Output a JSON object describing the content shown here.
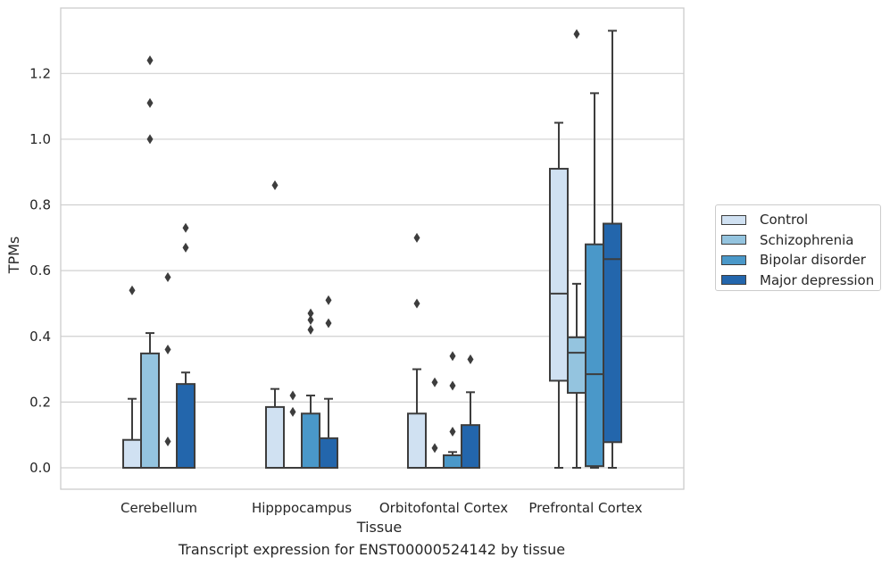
{
  "chart_data": {
    "type": "box",
    "title": "",
    "caption": "Transcript expression for ENST00000524142 by tissue",
    "xlabel": "Tissue",
    "ylabel": "TPMs",
    "ylim": [
      -0.065,
      1.405
    ],
    "yticks": [
      "0.0",
      "0.2",
      "0.4",
      "0.6",
      "0.8",
      "1.0",
      "1.2"
    ],
    "grid": "horizontal",
    "legend_position": "right",
    "categories": [
      "Cerebellum",
      "Hipppocampus",
      "Orbitofontal Cortex",
      "Prefrontal Cortex"
    ],
    "series": [
      {
        "name": "Control",
        "color": "#d0e1f2",
        "boxes": [
          {
            "q1": 0.0,
            "median": 0.0,
            "q3": 0.085,
            "whisker_low": 0.0,
            "whisker_high": 0.21,
            "outliers": [
              0.54
            ]
          },
          {
            "q1": 0.0,
            "median": 0.0,
            "q3": 0.185,
            "whisker_low": 0.0,
            "whisker_high": 0.24,
            "outliers": [
              0.86
            ]
          },
          {
            "q1": 0.0,
            "median": 0.0,
            "q3": 0.165,
            "whisker_low": 0.0,
            "whisker_high": 0.3,
            "outliers": [
              0.5,
              0.7
            ]
          },
          {
            "q1": 0.265,
            "median": 0.53,
            "q3": 0.91,
            "whisker_low": 0.0,
            "whisker_high": 1.05,
            "outliers": []
          }
        ]
      },
      {
        "name": "Schizophrenia",
        "color": "#94c4df",
        "boxes": [
          {
            "q1": 0.0,
            "median": 0.0,
            "q3": 0.348,
            "whisker_low": 0.0,
            "whisker_high": 0.41,
            "outliers": [
              1.0,
              1.11,
              1.24
            ]
          },
          {
            "q1": 0.0,
            "median": 0.0,
            "q3": 0.0,
            "whisker_low": 0.0,
            "whisker_high": 0.0,
            "outliers": [
              0.17,
              0.22
            ]
          },
          {
            "q1": 0.0,
            "median": 0.0,
            "q3": 0.0,
            "whisker_low": 0.0,
            "whisker_high": 0.0,
            "outliers": [
              0.06,
              0.26
            ]
          },
          {
            "q1": 0.228,
            "median": 0.35,
            "q3": 0.397,
            "whisker_low": 0.0,
            "whisker_high": 0.56,
            "outliers": [
              1.32
            ]
          }
        ]
      },
      {
        "name": "Bipolar disorder",
        "color": "#4a98c9",
        "boxes": [
          {
            "q1": 0.0,
            "median": 0.0,
            "q3": 0.0,
            "whisker_low": 0.0,
            "whisker_high": 0.0,
            "outliers": [
              0.08,
              0.36,
              0.58
            ]
          },
          {
            "q1": 0.0,
            "median": 0.0,
            "q3": 0.165,
            "whisker_low": 0.0,
            "whisker_high": 0.22,
            "outliers": [
              0.42,
              0.45,
              0.47
            ]
          },
          {
            "q1": 0.0,
            "median": 0.0,
            "q3": 0.038,
            "whisker_low": 0.0,
            "whisker_high": 0.048,
            "outliers": [
              0.11,
              0.25,
              0.34
            ]
          },
          {
            "q1": 0.005,
            "median": 0.285,
            "q3": 0.68,
            "whisker_low": 0.0,
            "whisker_high": 1.14,
            "outliers": []
          }
        ]
      },
      {
        "name": "Major depression",
        "color": "#2366ac",
        "boxes": [
          {
            "q1": 0.0,
            "median": 0.0,
            "q3": 0.255,
            "whisker_low": 0.0,
            "whisker_high": 0.29,
            "outliers": [
              0.67,
              0.73
            ]
          },
          {
            "q1": 0.0,
            "median": 0.0,
            "q3": 0.09,
            "whisker_low": 0.0,
            "whisker_high": 0.21,
            "outliers": [
              0.44,
              0.51
            ]
          },
          {
            "q1": 0.0,
            "median": 0.0,
            "q3": 0.13,
            "whisker_low": 0.0,
            "whisker_high": 0.23,
            "outliers": [
              0.33
            ]
          },
          {
            "q1": 0.078,
            "median": 0.635,
            "q3": 0.743,
            "whisker_low": 0.0,
            "whisker_high": 1.33,
            "outliers": []
          }
        ]
      }
    ]
  }
}
